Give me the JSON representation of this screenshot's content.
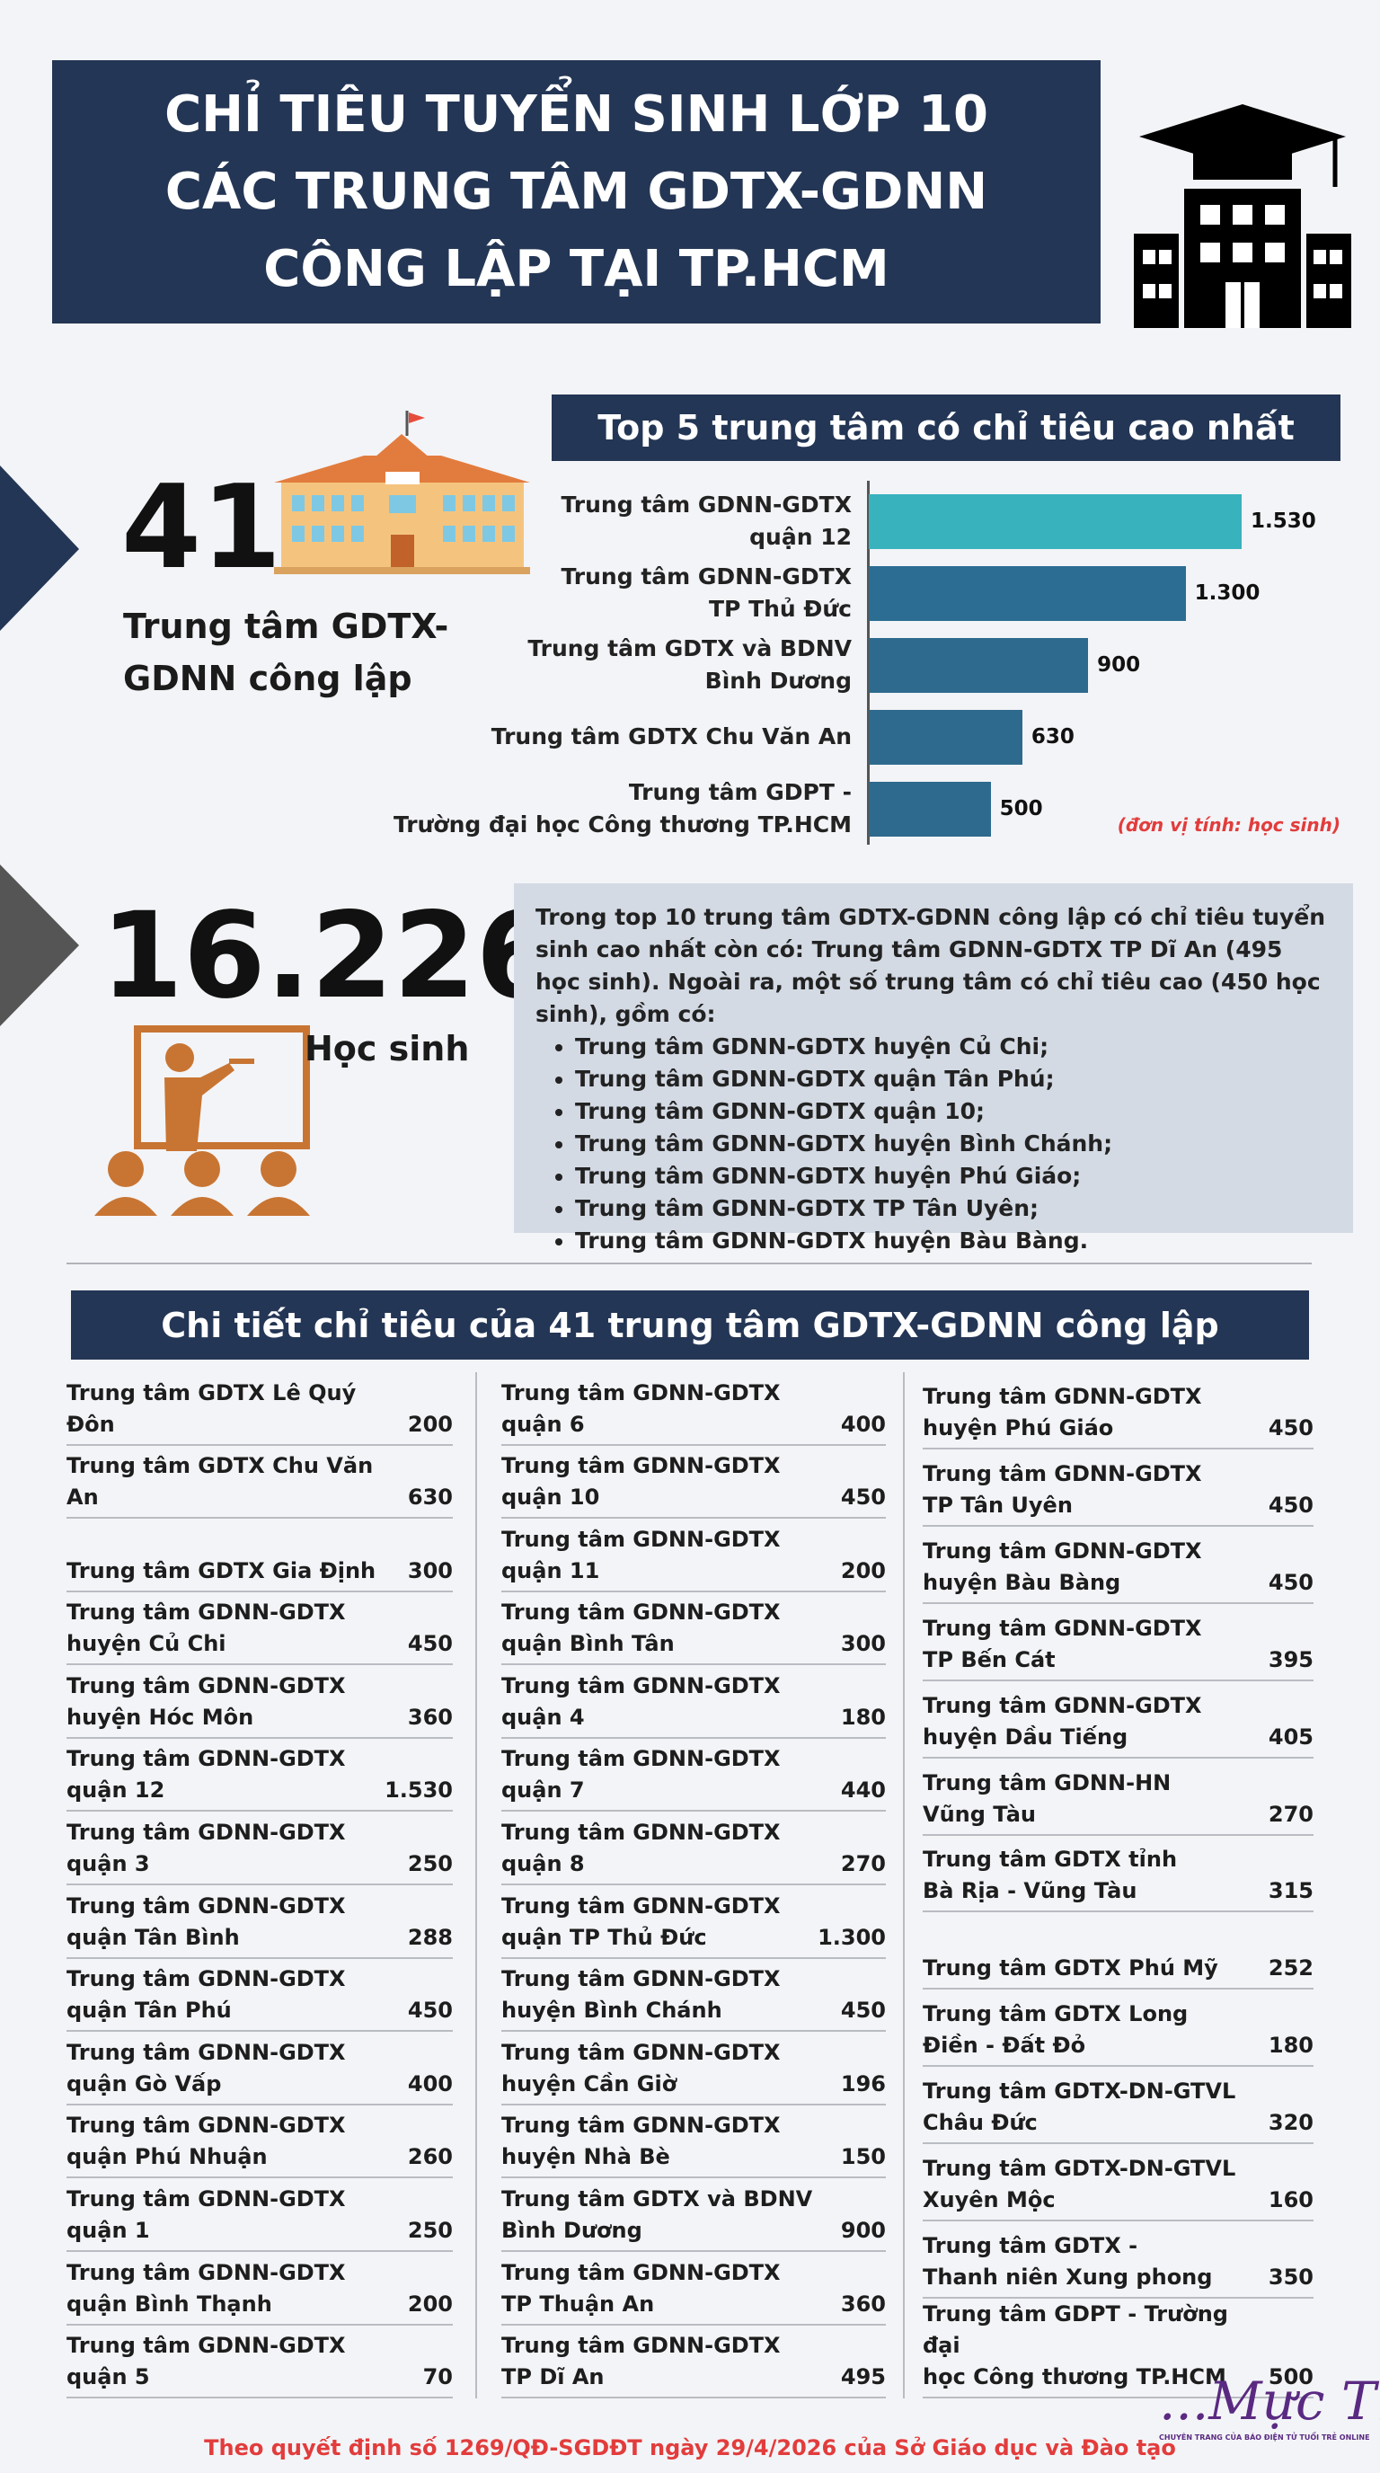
{
  "header": {
    "title_lines": [
      "CHỈ TIÊU TUYỂN SINH LỚP 10",
      "CÁC TRUNG TÂM GDTX-GDNN",
      "CÔNG LẬP TẠI TP.HCM"
    ]
  },
  "stat_centers": {
    "number": "41",
    "label": "Trung tâm GDTX-\nGDNN công lập"
  },
  "chart_data": {
    "type": "bar",
    "orientation": "horizontal",
    "title": "Top 5 trung tâm có chỉ tiêu cao nhất",
    "categories": [
      "Trung tâm GDNN-GDTX\nquận 12",
      "Trung tâm GDNN-GDTX\nTP Thủ Đức",
      "Trung tâm GDTX và BDNV\nBình Dương",
      "Trung tâm GDTX Chu Văn An",
      "Trung tâm GDPT -\nTrường đại học Công thương TP.HCM"
    ],
    "values": [
      1530,
      1300,
      900,
      630,
      500
    ],
    "value_labels": [
      "1.530",
      "1.300",
      "900",
      "630",
      "500"
    ],
    "colors": [
      "#38b2bd",
      "#2c6d93",
      "#2e6a8d",
      "#2e6a8d",
      "#2e6a8d"
    ],
    "note": "(đơn vị tính: học sinh)"
  },
  "stat_students": {
    "number": "16.226",
    "label": "Học sinh"
  },
  "info": {
    "paragraph": "Trong top 10 trung tâm GDTX-GDNN công lập có chỉ tiêu tuyển sinh cao nhất còn có: Trung tâm GDNN-GDTX TP Dĩ An (495 học sinh). Ngoài ra, một số trung tâm có chỉ tiêu cao (450 học sinh), gồm có:",
    "items": [
      "Trung tâm GDNN-GDTX huyện Củ Chi;",
      "Trung tâm GDNN-GDTX quận Tân Phú;",
      "Trung tâm GDNN-GDTX quận 10;",
      "Trung tâm GDNN-GDTX huyện Bình Chánh;",
      "Trung tâm GDNN-GDTX huyện Phú Giáo;",
      "Trung tâm GDNN-GDTX TP Tân Uyên;",
      "Trung tâm GDNN-GDTX huyện Bàu Bàng."
    ]
  },
  "detail": {
    "title": "Chi tiết chỉ tiêu của 41 trung tâm GDTX-GDNN công lập",
    "columns": [
      [
        {
          "name": "Trung tâm GDTX Lê Quý Đôn",
          "value": "200"
        },
        {
          "name": "Trung tâm GDTX Chu Văn An",
          "value": "630"
        },
        {
          "name": "Trung tâm GDTX Gia Định",
          "value": "300"
        },
        {
          "name": "Trung tâm GDNN-GDTX\nhuyện Củ Chi",
          "value": "450"
        },
        {
          "name": "Trung tâm GDNN-GDTX\nhuyện Hóc Môn",
          "value": "360"
        },
        {
          "name": "Trung tâm GDNN-GDTX\nquận 12",
          "value": "1.530"
        },
        {
          "name": "Trung tâm GDNN-GDTX\nquận 3",
          "value": "250"
        },
        {
          "name": "Trung tâm GDNN-GDTX\nquận Tân Bình",
          "value": "288"
        },
        {
          "name": "Trung tâm GDNN-GDTX\nquận Tân Phú",
          "value": "450"
        },
        {
          "name": "Trung tâm GDNN-GDTX\nquận Gò Vấp",
          "value": "400"
        },
        {
          "name": "Trung tâm GDNN-GDTX\nquận Phú Nhuận",
          "value": "260"
        },
        {
          "name": "Trung tâm GDNN-GDTX\nquận 1",
          "value": "250"
        },
        {
          "name": "Trung tâm GDNN-GDTX\nquận Bình Thạnh",
          "value": "200"
        },
        {
          "name": "Trung tâm GDNN-GDTX\nquận 5",
          "value": "70"
        }
      ],
      [
        {
          "name": "Trung tâm GDNN-GDTX\nquận 6",
          "value": "400"
        },
        {
          "name": "Trung tâm GDNN-GDTX\nquận 10",
          "value": "450"
        },
        {
          "name": "Trung tâm GDNN-GDTX\nquận 11",
          "value": "200"
        },
        {
          "name": "Trung tâm GDNN-GDTX\nquận Bình Tân",
          "value": "300"
        },
        {
          "name": "Trung tâm GDNN-GDTX\nquận 4",
          "value": "180"
        },
        {
          "name": "Trung tâm GDNN-GDTX\nquận 7",
          "value": "440"
        },
        {
          "name": "Trung tâm GDNN-GDTX\nquận 8",
          "value": "270"
        },
        {
          "name": "Trung tâm GDNN-GDTX\nquận TP Thủ Đức",
          "value": "1.300"
        },
        {
          "name": "Trung tâm GDNN-GDTX\nhuyện Bình Chánh",
          "value": "450"
        },
        {
          "name": "Trung tâm GDNN-GDTX\nhuyện Cần Giờ",
          "value": "196"
        },
        {
          "name": "Trung tâm GDNN-GDTX\nhuyện Nhà Bè",
          "value": "150"
        },
        {
          "name": "Trung tâm GDTX và BDNV\nBình Dương",
          "value": "900"
        },
        {
          "name": "Trung tâm GDNN-GDTX\nTP Thuận An",
          "value": "360"
        },
        {
          "name": "Trung tâm GDNN-GDTX\nTP Dĩ An",
          "value": "495"
        }
      ],
      [
        {
          "name": "Trung tâm GDNN-GDTX\nhuyện Phú Giáo",
          "value": "450"
        },
        {
          "name": "Trung tâm GDNN-GDTX\nTP Tân Uyên",
          "value": "450"
        },
        {
          "name": "Trung tâm GDNN-GDTX\nhuyện Bàu Bàng",
          "value": "450"
        },
        {
          "name": "Trung tâm GDNN-GDTX\nTP Bến Cát",
          "value": "395"
        },
        {
          "name": "Trung tâm GDNN-GDTX\nhuyện Dầu Tiếng",
          "value": "405"
        },
        {
          "name": "Trung tâm GDNN-HN\nVũng Tàu",
          "value": "270"
        },
        {
          "name": "Trung tâm GDTX tỉnh\nBà Rịa - Vũng Tàu",
          "value": "315"
        },
        {
          "name": "Trung tâm GDTX Phú Mỹ",
          "value": "252"
        },
        {
          "name": "Trung tâm GDTX Long\nĐiền - Đất Đỏ",
          "value": "180"
        },
        {
          "name": "Trung tâm GDTX-DN-GTVL\nChâu Đức",
          "value": "320"
        },
        {
          "name": "Trung tâm GDTX-DN-GTVL\nXuyên Mộc",
          "value": "160"
        },
        {
          "name": "Trung tâm GDTX -\nThanh niên Xung phong",
          "value": "350"
        },
        {
          "name": "Trung tâm GDPT - Trường đại\nhọc Công thương TP.HCM",
          "value": "500"
        }
      ]
    ]
  },
  "footer": {
    "source": "Theo quyết định số 1269/QĐ-SGDĐT ngày 29/4/2026 của Sở Giáo dục và Đào tạo",
    "logo": "...Mực Tím",
    "logo_tagline": "CHUYÊN TRANG CỦA BÁO ĐIỆN TỬ TUỔI TRẺ ONLINE"
  }
}
